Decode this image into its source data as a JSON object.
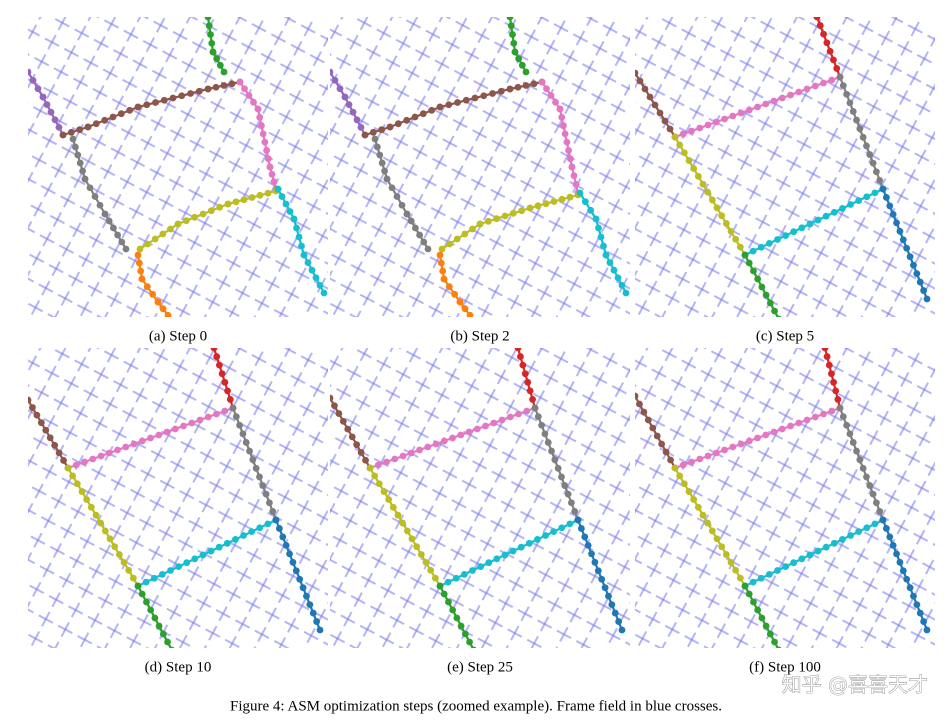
{
  "figure": {
    "panels": [
      {
        "caption": "(a) Step 0"
      },
      {
        "caption": "(b) Step 2"
      },
      {
        "caption": "(c) Step 5"
      },
      {
        "caption": "(d) Step 10"
      },
      {
        "caption": "(e) Step 25"
      },
      {
        "caption": "(f) Step 100"
      }
    ],
    "caption": "Figure 4: ASM optimization steps (zoomed example). Frame field in blue crosses.",
    "watermark": "知乎 @喜喜天才"
  }
}
